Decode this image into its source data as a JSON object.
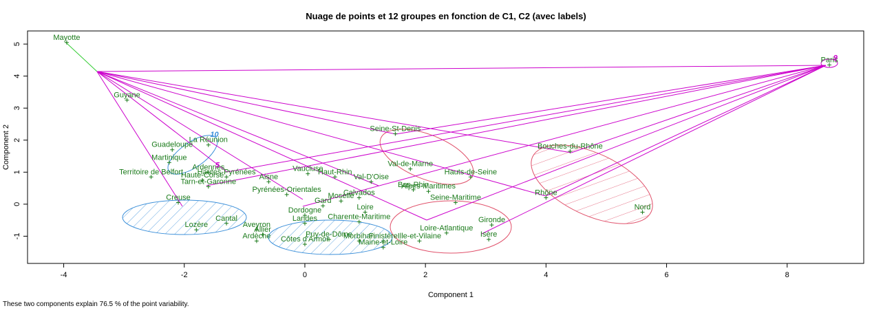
{
  "chart_data": {
    "type": "scatter",
    "title": "Nuage de points et 12 groupes en fonction de C1, C2 (avec labels)",
    "x_label": "Component 1",
    "y_label": "Component 2",
    "caption": "These two components explain 76.5 % of the point variability.",
    "xlim": [
      -4.6,
      9.27
    ],
    "ylim": [
      -1.85,
      5.41
    ],
    "xticks": [
      -4,
      -2,
      0,
      2,
      4,
      6,
      8
    ],
    "yticks": [
      -1,
      0,
      1,
      2,
      3,
      4,
      5
    ],
    "labels": [
      "Mayotte",
      "Paris",
      "Guyane",
      "Seine-St-Denis",
      "Guadeloupe",
      "La Réunion",
      "Martinique",
      "Territoire de Belfort",
      "Ardennes",
      "Haute-Corse",
      "Hautes-Pyrénées",
      "Tarn-et-Garonne",
      "Vaucluse",
      "Haut-Rhin",
      "Aisne",
      "Val-D'Oise",
      "Val-de-Marne",
      "Hauts-de-Seine",
      "Bouches-du-Rhône",
      "Calvados",
      "Bas-Rhin",
      "Alpes-Maritimes",
      "Rhône",
      "Nord",
      "Seine-Maritime",
      "Creuse",
      "Lozère",
      "Cantal",
      "Aveyron",
      "Ardèche",
      "Côtes d'Armor",
      "Puy-de-Dôme",
      "Charente-Maritime",
      "Loire-Atlantique",
      "Ille-et-Vilaine",
      "Gironde",
      "Isère",
      "Maine-et-Loire",
      "Finistère",
      "Morbihan",
      "Gard",
      "Moselle",
      "Pyrénées-Orientales",
      "Landes",
      "Dordogne",
      "Loire",
      "Allier"
    ],
    "x": [
      -3.95,
      8.7,
      -2.95,
      1.5,
      -2.2,
      -1.6,
      -2.25,
      -2.55,
      -1.6,
      -1.7,
      -1.3,
      -1.6,
      0.05,
      0.5,
      -0.6,
      1.1,
      1.75,
      2.75,
      4.4,
      0.9,
      1.8,
      2.05,
      4.0,
      5.6,
      2.5,
      -2.1,
      -1.8,
      -1.3,
      -0.8,
      -0.8,
      0.0,
      0.4,
      0.9,
      2.35,
      1.9,
      3.1,
      3.05,
      1.3,
      1.3,
      0.9,
      0.3,
      0.6,
      -0.3,
      0.0,
      0.0,
      1.0,
      -0.7
    ],
    "series": [
      {
        "color": "#1a7a1a",
        "values": [
          5.05,
          4.35,
          3.25,
          2.2,
          1.7,
          1.85,
          1.3,
          0.85,
          1.0,
          0.75,
          0.85,
          0.55,
          0.95,
          0.85,
          0.7,
          0.7,
          1.1,
          0.85,
          1.65,
          0.2,
          0.45,
          0.4,
          0.2,
          -0.25,
          0.05,
          0.05,
          -0.8,
          -0.6,
          -0.8,
          -1.15,
          -1.25,
          -1.1,
          -0.55,
          -0.9,
          -1.15,
          -0.65,
          -1.1,
          -1.35,
          -1.15,
          -1.15,
          -0.05,
          0.1,
          0.3,
          -0.6,
          -0.35,
          -0.25,
          -0.95
        ]
      }
    ],
    "annotations": [
      {
        "text": "10",
        "x": -1.5,
        "y": 2.1,
        "color": "#3b8fd9"
      },
      {
        "text": "5",
        "x": -1.45,
        "y": 1.15,
        "color": "#cc00cc"
      },
      {
        "text": "9",
        "x": 8.8,
        "y": 4.5,
        "color": "#cc00cc"
      }
    ]
  }
}
